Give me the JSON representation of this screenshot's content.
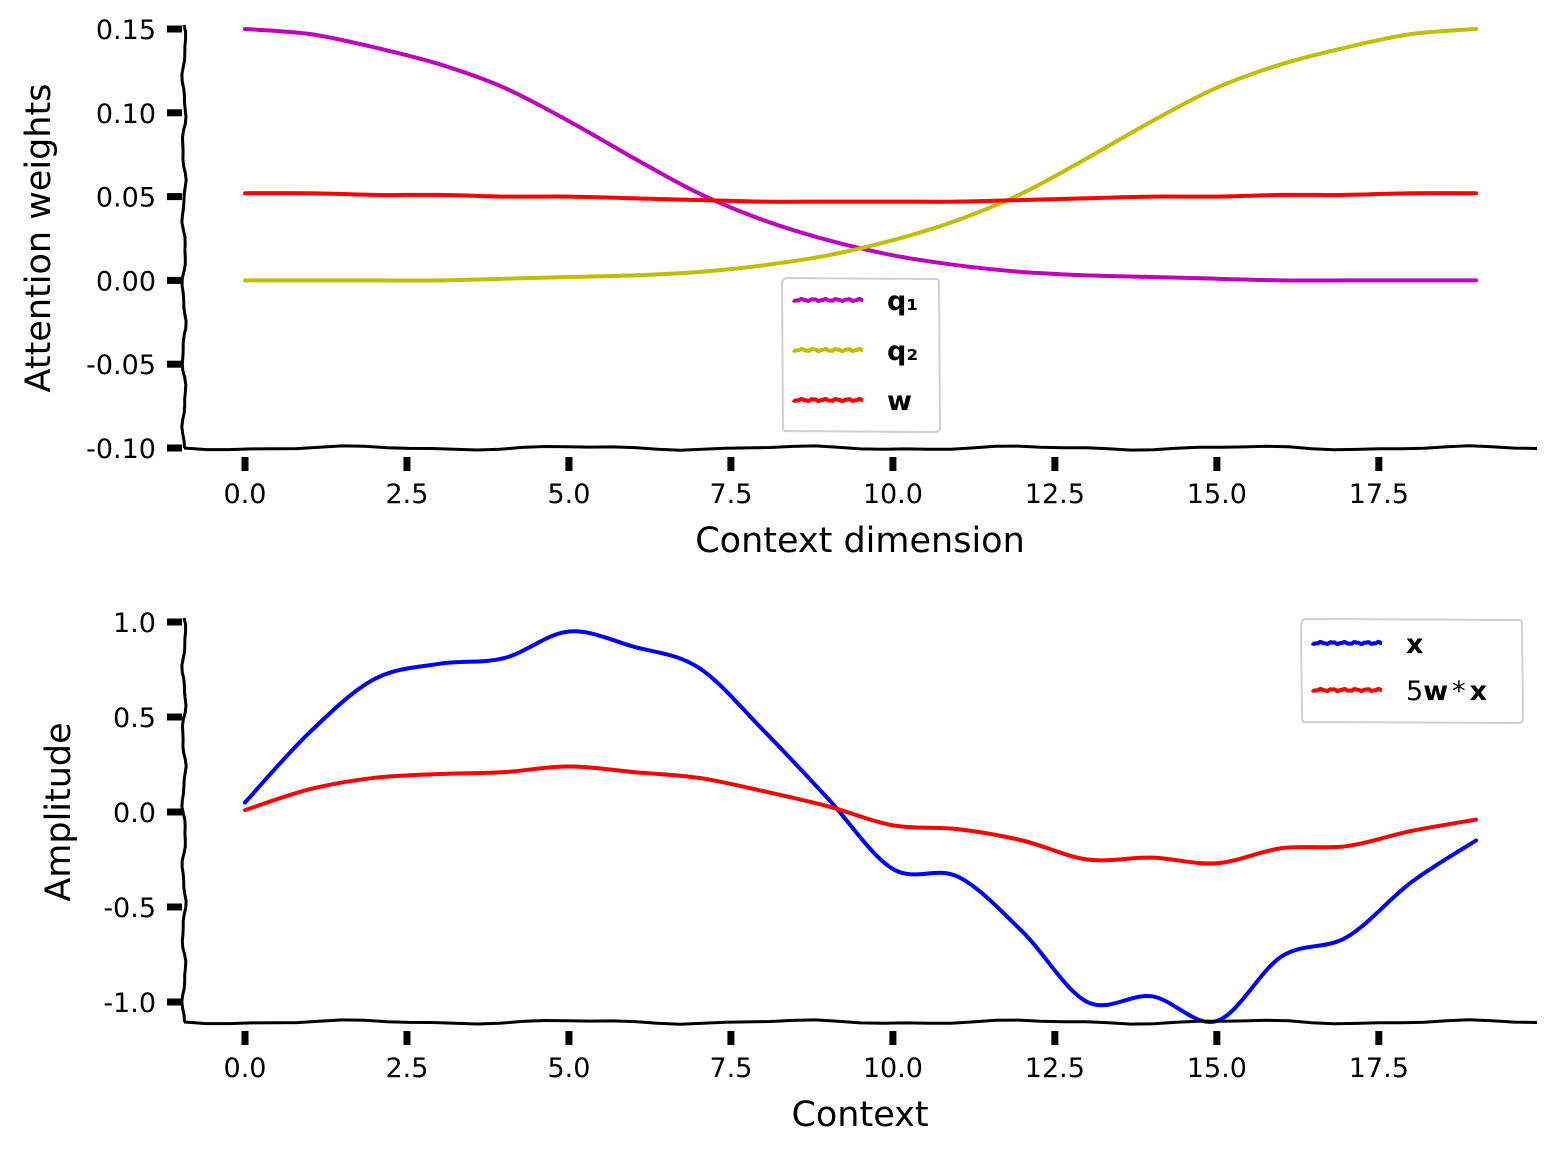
{
  "chart_data": [
    {
      "type": "line",
      "xlabel": "Context dimension",
      "ylabel": "Attention weights",
      "xlim": [
        -1,
        20
      ],
      "ylim": [
        -0.1,
        0.15
      ],
      "xticks": [
        "0.0",
        "2.5",
        "5.0",
        "7.5",
        "10.0",
        "12.5",
        "15.0",
        "17.5"
      ],
      "xtick_values": [
        0,
        2.5,
        5,
        7.5,
        10,
        12.5,
        15,
        17.5
      ],
      "yticks": [
        "-0.10",
        "-0.05",
        "0.00",
        "0.05",
        "0.10",
        "0.15"
      ],
      "ytick_values": [
        -0.1,
        -0.05,
        0,
        0.05,
        0.1,
        0.15
      ],
      "legend_position": "lower-center",
      "x": [
        0,
        1,
        2,
        3,
        4,
        5,
        6,
        7,
        8,
        9,
        10,
        11,
        12,
        13,
        14,
        15,
        16,
        17,
        18,
        19
      ],
      "series": [
        {
          "name": "q₁",
          "color": "#bf00bf",
          "values": [
            0.15,
            0.147,
            0.139,
            0.129,
            0.115,
            0.095,
            0.073,
            0.052,
            0.036,
            0.024,
            0.015,
            0.009,
            0.005,
            0.003,
            0.002,
            0.001,
            0.0,
            0.0,
            0.0,
            0.0
          ]
        },
        {
          "name": "q₂",
          "color": "#bfbf00",
          "values": [
            0.0,
            0.0,
            0.0,
            0.0,
            0.001,
            0.002,
            0.003,
            0.005,
            0.009,
            0.015,
            0.024,
            0.036,
            0.052,
            0.073,
            0.095,
            0.115,
            0.129,
            0.139,
            0.147,
            0.15
          ]
        },
        {
          "name": "w",
          "color": "#ff0000",
          "values": [
            0.052,
            0.052,
            0.051,
            0.051,
            0.05,
            0.05,
            0.049,
            0.048,
            0.047,
            0.047,
            0.047,
            0.047,
            0.048,
            0.049,
            0.05,
            0.05,
            0.051,
            0.051,
            0.052,
            0.052
          ]
        }
      ]
    },
    {
      "type": "line",
      "xlabel": "Context",
      "ylabel": "Amplitude",
      "xlim": [
        -1,
        20
      ],
      "ylim": [
        -1.1,
        1.1
      ],
      "xticks": [
        "0.0",
        "2.5",
        "5.0",
        "7.5",
        "10.0",
        "12.5",
        "15.0",
        "17.5"
      ],
      "xtick_values": [
        0,
        2.5,
        5,
        7.5,
        10,
        12.5,
        15,
        17.5
      ],
      "yticks": [
        "-1.0",
        "-0.5",
        "0.0",
        "0.5",
        "1.0"
      ],
      "ytick_values": [
        -1,
        -0.5,
        0,
        0.5,
        1
      ],
      "legend_position": "upper-right",
      "x": [
        0,
        1,
        2,
        3,
        4,
        5,
        6,
        7,
        8,
        9,
        10,
        11,
        12,
        13,
        14,
        15,
        16,
        17,
        18,
        19
      ],
      "series": [
        {
          "name": "x",
          "color": "#0000ff",
          "values": [
            0.05,
            0.42,
            0.7,
            0.78,
            0.81,
            0.95,
            0.87,
            0.76,
            0.43,
            0.07,
            -0.3,
            -0.34,
            -0.63,
            -1.0,
            -0.97,
            -1.1,
            -0.76,
            -0.66,
            -0.37,
            -0.15
          ]
        },
        {
          "name": "5w * x",
          "color": "#ff0000",
          "values": [
            0.01,
            0.12,
            0.18,
            0.2,
            0.21,
            0.24,
            0.21,
            0.18,
            0.11,
            0.03,
            -0.07,
            -0.09,
            -0.15,
            -0.25,
            -0.24,
            -0.27,
            -0.19,
            -0.18,
            -0.1,
            -0.04
          ]
        }
      ]
    }
  ]
}
